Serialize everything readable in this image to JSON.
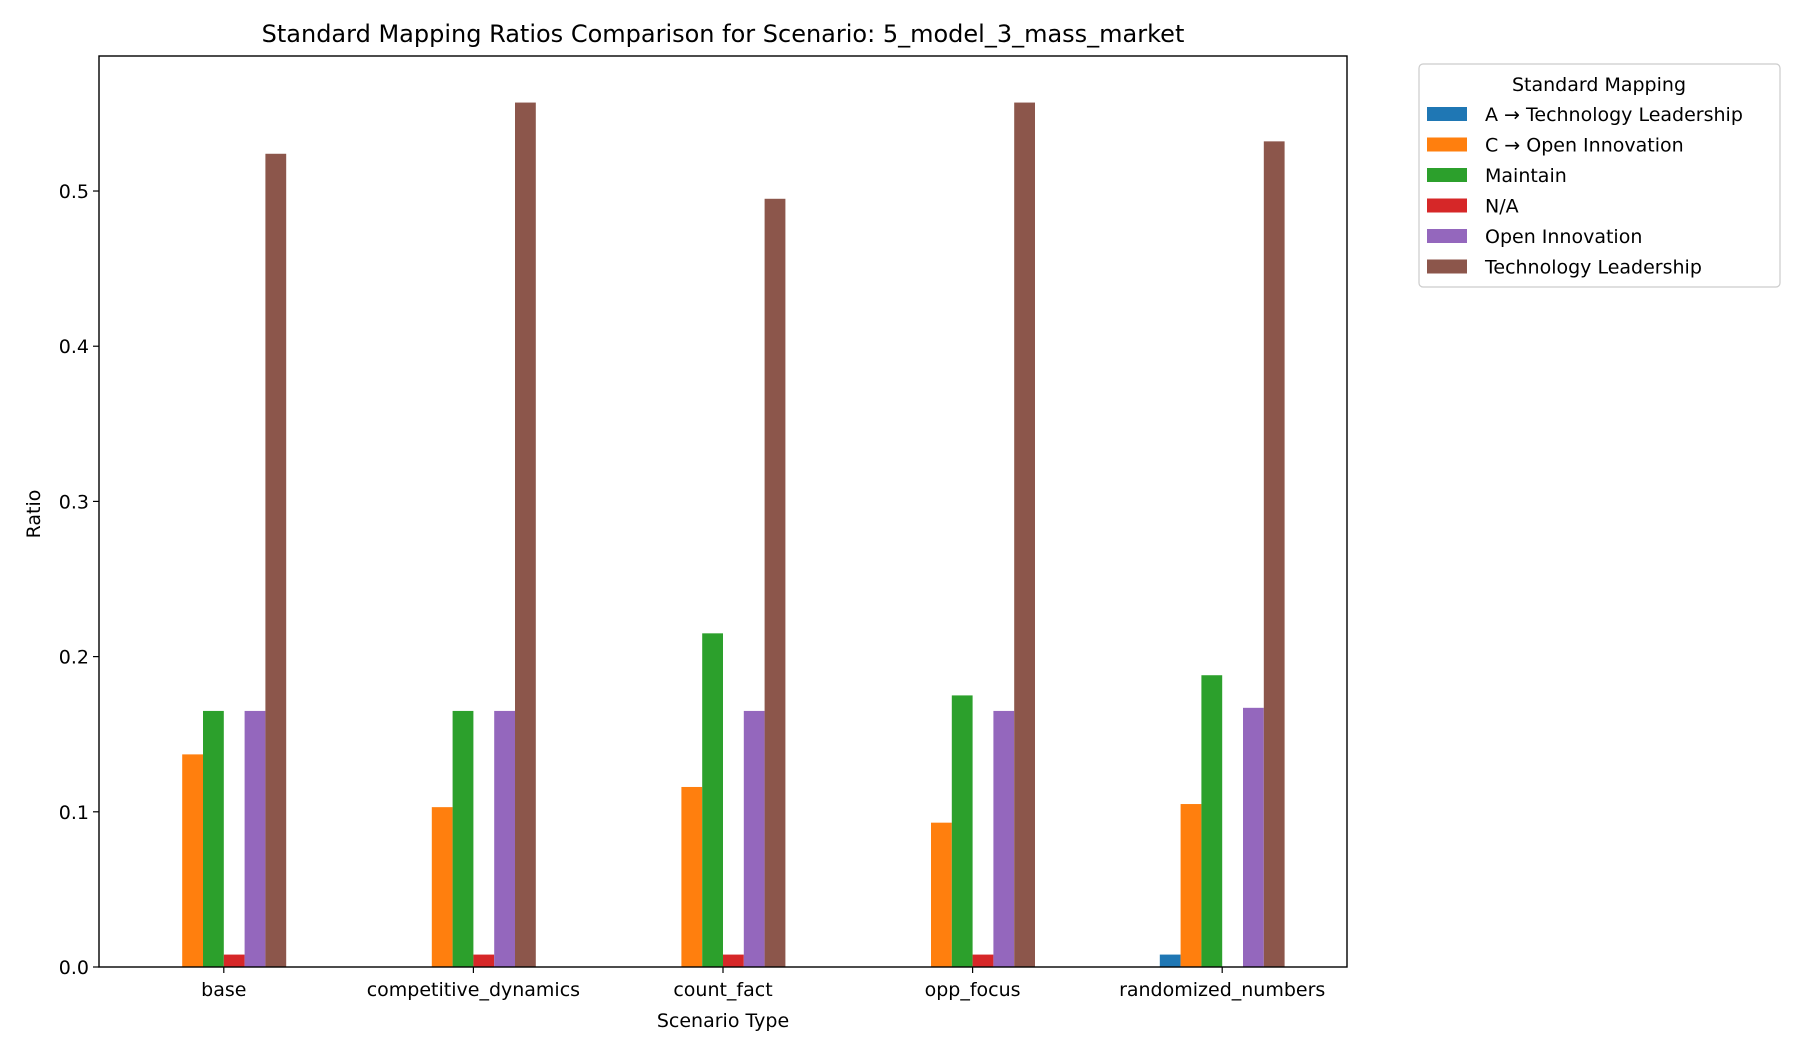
{
  "chart_data": {
    "type": "bar",
    "title": "Standard Mapping Ratios Comparison for Scenario: 5_model_3_mass_market",
    "xlabel": "Scenario Type",
    "ylabel": "Ratio",
    "ylim": [
      0,
      0.587
    ],
    "yticks": [
      "0.0",
      "0.1",
      "0.2",
      "0.3",
      "0.4",
      "0.5"
    ],
    "grid": false,
    "legend_title": "Standard Mapping",
    "legend_position": "outside-top-right",
    "categories": [
      "base",
      "competitive_dynamics",
      "count_fact",
      "opp_focus",
      "randomized_numbers"
    ],
    "series": [
      {
        "name": "A → Technology Leadership",
        "color": "#1f77b4",
        "values": [
          0,
          0,
          0,
          0,
          0.008
        ]
      },
      {
        "name": "C → Open Innovation",
        "color": "#ff7f0e",
        "values": [
          0.137,
          0.103,
          0.116,
          0.093,
          0.105
        ]
      },
      {
        "name": "Maintain",
        "color": "#2ca02c",
        "values": [
          0.165,
          0.165,
          0.215,
          0.175,
          0.188
        ]
      },
      {
        "name": "N/A",
        "color": "#d62728",
        "values": [
          0.008,
          0.008,
          0.008,
          0.008,
          0
        ]
      },
      {
        "name": "Open Innovation",
        "color": "#9467bd",
        "values": [
          0.165,
          0.165,
          0.165,
          0.165,
          0.167
        ]
      },
      {
        "name": "Technology Leadership",
        "color": "#8c564b",
        "values": [
          0.524,
          0.557,
          0.495,
          0.557,
          0.532
        ]
      }
    ]
  }
}
